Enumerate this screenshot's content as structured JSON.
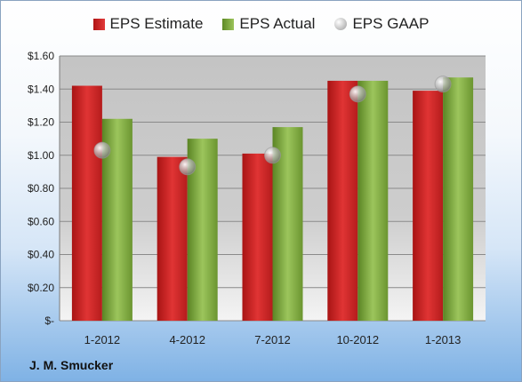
{
  "company": "J. M. Smucker",
  "chart_data": {
    "type": "bar",
    "categories": [
      "1-2012",
      "4-2012",
      "7-2012",
      "10-2012",
      "1-2013"
    ],
    "series": [
      {
        "name": "EPS Estimate",
        "values": [
          1.42,
          0.99,
          1.01,
          1.45,
          1.39
        ],
        "color": "#d42222"
      },
      {
        "name": "EPS Actual",
        "values": [
          1.22,
          1.1,
          1.17,
          1.45,
          1.47
        ],
        "color": "#7fa843"
      },
      {
        "name": "EPS GAAP",
        "values": [
          1.03,
          0.93,
          1.0,
          1.37,
          1.43
        ],
        "color": "#c8c8c8",
        "marker": "circle"
      }
    ],
    "yticks": [
      "$-",
      "$0.20",
      "$0.40",
      "$0.60",
      "$0.80",
      "$1.00",
      "$1.20",
      "$1.40",
      "$1.60"
    ],
    "ylim": [
      0,
      1.6
    ],
    "grid": true,
    "legend": "top"
  }
}
